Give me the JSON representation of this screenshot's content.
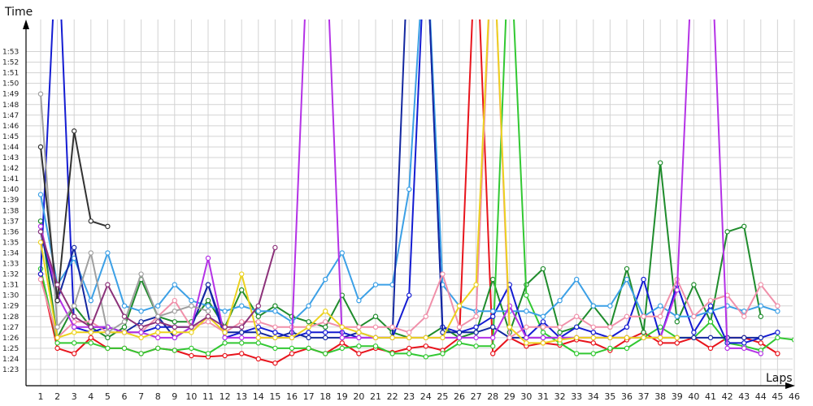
{
  "chart_data": {
    "type": "line",
    "title": "",
    "xlabel": "Laps",
    "ylabel": "Time",
    "grid": true,
    "legend": "none",
    "x": [
      1,
      2,
      3,
      4,
      5,
      6,
      7,
      8,
      9,
      10,
      11,
      12,
      13,
      14,
      15,
      16,
      17,
      18,
      19,
      20,
      21,
      22,
      23,
      24,
      25,
      26,
      27,
      28,
      29,
      30,
      31,
      32,
      33,
      34,
      35,
      36,
      37,
      38,
      39,
      40,
      41,
      42,
      43,
      44,
      45,
      46
    ],
    "xlim": [
      1,
      46
    ],
    "ylim": [
      82,
      115
    ],
    "y_ticks": [
      "1:23",
      "1:24",
      "1:25",
      "1:26",
      "1:27",
      "1:28",
      "1:29",
      "1:30",
      "1:31",
      "1:32",
      "1:33",
      "1:34",
      "1:35",
      "1:36",
      "1:37",
      "1:38",
      "1:39",
      "1:40",
      "1:41",
      "1:42",
      "1:43",
      "1:44",
      "1:45",
      "1:46",
      "1:47",
      "1:48",
      "1:49",
      "1:50",
      "1:51",
      "1:52",
      "1:53"
    ],
    "series": [
      {
        "color": "#e8141c",
        "values": [
          92,
          85,
          84.5,
          86,
          85,
          85,
          84.5,
          85,
          84.8,
          84.3,
          84.2,
          84.3,
          84.5,
          84,
          83.6,
          84.5,
          85,
          84.5,
          85.5,
          84.5,
          85,
          84.6,
          85,
          85.2,
          84.8,
          86,
          125,
          84.5,
          86,
          85.2,
          85.5,
          85.3,
          85.8,
          85.5,
          84.8,
          85.8,
          86.5,
          85.5,
          85.5,
          86,
          85,
          86,
          86,
          85.5,
          84.5,
          null
        ]
      },
      {
        "color": "#1f8c2c",
        "values": [
          97,
          86,
          89,
          87,
          86,
          87,
          91.5,
          88,
          87.5,
          87.5,
          89.5,
          87,
          90.5,
          88,
          89,
          88,
          87.5,
          87,
          90,
          87,
          88,
          86.5,
          86,
          86,
          87,
          86,
          86.5,
          91.5,
          86.5,
          91,
          92.5,
          86.5,
          87,
          89,
          87,
          92.5,
          86.5,
          102.5,
          87.5,
          91,
          87.5,
          96,
          96.5,
          88,
          null,
          null
        ]
      },
      {
        "color": "#32c832",
        "values": [
          92.5,
          85.5,
          85.5,
          85.5,
          85,
          85,
          84.5,
          85,
          84.8,
          85,
          84.5,
          85.5,
          85.5,
          85.5,
          85,
          85,
          85,
          84.5,
          85,
          85.2,
          85.2,
          84.5,
          84.5,
          84.2,
          84.5,
          85.5,
          85.2,
          85.2,
          125,
          90,
          86.5,
          85.5,
          84.5,
          84.5,
          85,
          85,
          86,
          87,
          86,
          86,
          87.5,
          85.5,
          85.2,
          84.8,
          86,
          85.8
        ]
      },
      {
        "color": "#141cd2",
        "values": [
          92,
          125,
          87,
          86.5,
          87,
          86.5,
          86.5,
          87,
          87,
          87,
          91,
          86,
          86.5,
          87,
          86.5,
          86,
          86.5,
          86.5,
          86.5,
          86,
          86,
          86,
          90,
          125,
          87,
          86.5,
          87,
          88,
          91,
          86,
          87.5,
          86,
          87,
          86.5,
          86,
          87,
          91.5,
          86,
          91,
          86.5,
          89,
          85.5,
          85.5,
          86,
          86.5,
          null
        ]
      },
      {
        "color": "#3ca0e6",
        "values": [
          99.5,
          91,
          93.5,
          89.5,
          94,
          89,
          88.5,
          89,
          91,
          89.5,
          89,
          88.5,
          89,
          88.5,
          88.5,
          87.5,
          89,
          91.5,
          94,
          89.5,
          91,
          91,
          100,
          125,
          91,
          89,
          88.5,
          88.5,
          88.5,
          88.5,
          88,
          89.5,
          91.5,
          89,
          89,
          91.5,
          88,
          89,
          88,
          88,
          88.5,
          89,
          88.5,
          89,
          88.5,
          null
        ]
      },
      {
        "color": "#1428a0",
        "values": [
          96,
          89.5,
          94.5,
          87,
          87,
          86.5,
          87.5,
          88,
          86,
          87,
          91,
          86.5,
          86.5,
          86.5,
          86,
          86.5,
          86,
          86,
          86,
          86.5,
          86,
          86,
          125,
          125,
          86.5,
          86.5,
          86.5,
          87,
          86,
          86,
          86,
          86,
          86,
          86,
          86,
          86,
          86,
          86,
          86,
          86,
          86,
          86,
          86,
          86,
          null,
          null
        ]
      },
      {
        "color": "#f090aa",
        "values": [
          91.5,
          86,
          87.5,
          87.5,
          86.5,
          86.5,
          86.5,
          88,
          89.5,
          87,
          87.5,
          86.5,
          87.5,
          87.5,
          87,
          87,
          87,
          87.5,
          87,
          87,
          87,
          87,
          86.5,
          88,
          92,
          87,
          88,
          125,
          86,
          87,
          87,
          87,
          88,
          87,
          87,
          88,
          88,
          88,
          91.5,
          88,
          89.5,
          90,
          88,
          91,
          89,
          null
        ]
      },
      {
        "color": "#b432e6",
        "values": [
          96.5,
          90,
          87,
          87,
          87,
          86.5,
          86.5,
          86,
          86,
          87,
          93.5,
          86,
          86,
          86,
          86,
          86,
          125,
          125,
          86,
          86,
          86,
          86,
          86,
          86,
          86,
          86,
          86,
          86,
          89,
          86,
          86,
          86,
          86,
          86,
          86,
          86,
          86,
          86,
          90.5,
          125,
          125,
          85,
          85,
          84.5,
          null,
          null
        ]
      },
      {
        "color": "#ecd21e",
        "values": [
          95,
          86,
          86.5,
          86.5,
          86.5,
          86.5,
          86,
          86.5,
          86.5,
          86.5,
          88,
          86.5,
          92,
          86,
          86,
          86,
          87,
          88.5,
          87,
          86.5,
          86,
          86,
          86,
          86,
          86,
          89,
          91,
          125,
          87,
          85.5,
          85.5,
          85.8,
          86,
          86,
          86,
          86,
          86,
          86,
          86,
          null,
          null,
          null,
          null,
          null,
          null,
          null
        ]
      },
      {
        "color": "#a0a0a0",
        "values": [
          109,
          87,
          89,
          94,
          86.5,
          87.5,
          92,
          88,
          88.5,
          89,
          88.5,
          null,
          null,
          null,
          null,
          null,
          null,
          null,
          null,
          null,
          null,
          null,
          null,
          null,
          null,
          null,
          null,
          null,
          null,
          null,
          null,
          null,
          null,
          null,
          null,
          null,
          null,
          null,
          null,
          null,
          null,
          null,
          null,
          null,
          null,
          null
        ]
      },
      {
        "color": "#323232",
        "values": [
          104,
          89.5,
          105.5,
          97,
          96.5,
          null,
          null,
          null,
          null,
          null,
          null,
          null,
          null,
          null,
          null,
          null,
          null,
          null,
          null,
          null,
          null,
          null,
          null,
          null,
          null,
          null,
          null,
          null,
          null,
          null,
          null,
          null,
          null,
          null,
          null,
          null,
          null,
          null,
          null,
          null,
          null,
          null,
          null,
          null,
          null,
          null
        ]
      },
      {
        "color": "#8c327a",
        "values": [
          96,
          91,
          88,
          87,
          91,
          88,
          87,
          87.5,
          87,
          87,
          88,
          87,
          87,
          89,
          94.5,
          null,
          null,
          null,
          null,
          null,
          null,
          null,
          null,
          null,
          null,
          null,
          null,
          null,
          null,
          null,
          null,
          null,
          null,
          null,
          null,
          null,
          null,
          null,
          null,
          null,
          null,
          null,
          null,
          null,
          null,
          null
        ]
      }
    ]
  }
}
